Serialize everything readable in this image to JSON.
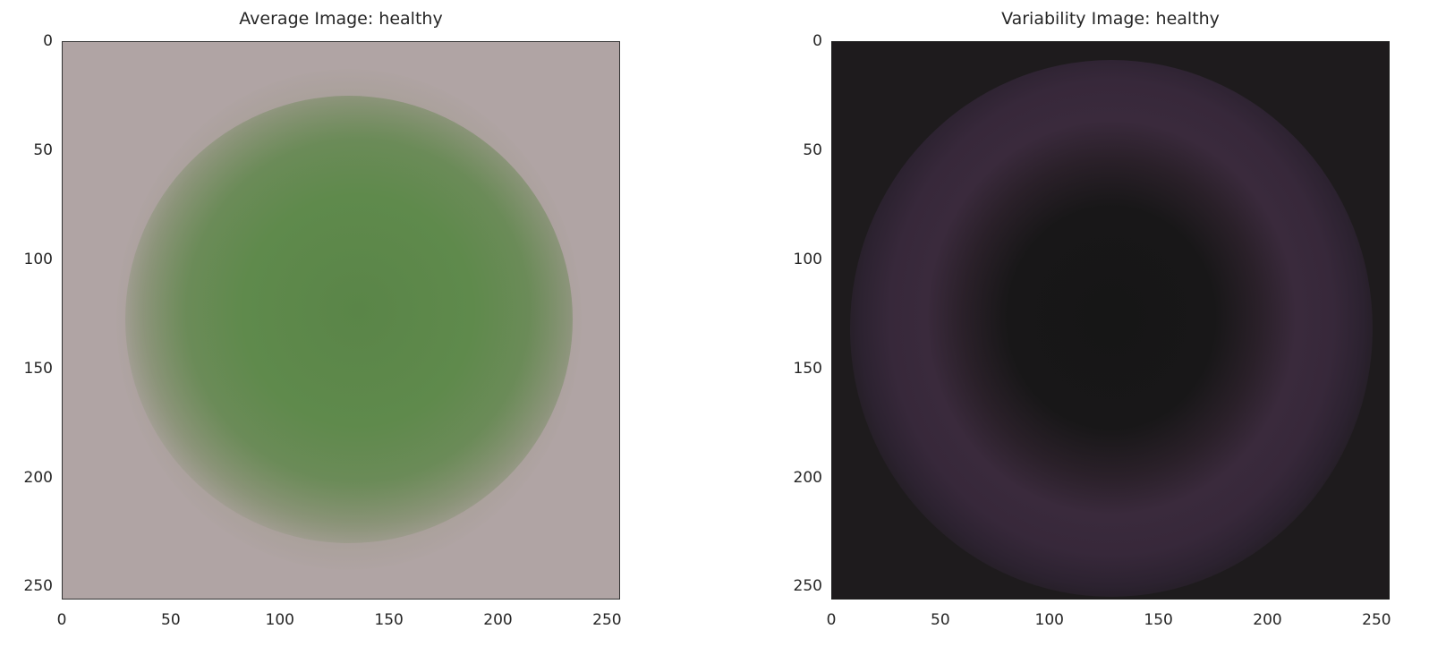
{
  "chart_data": [
    {
      "type": "heatmap",
      "title": "Average Image: healthy",
      "xlabel": "",
      "ylabel": "",
      "xlim": [
        0,
        256
      ],
      "ylim": [
        256,
        0
      ],
      "xticks": [
        0,
        50,
        100,
        150,
        200,
        250
      ],
      "yticks": [
        0,
        50,
        100,
        150,
        200,
        250
      ],
      "grid": false,
      "colors": {
        "background": "#b0a4a4",
        "center": "#5f8a4c"
      }
    },
    {
      "type": "heatmap",
      "title": "Variability Image: healthy",
      "xlabel": "",
      "ylabel": "",
      "xlim": [
        0,
        256
      ],
      "ylim": [
        256,
        0
      ],
      "xticks": [
        0,
        50,
        100,
        150,
        200,
        250
      ],
      "yticks": [
        0,
        50,
        100,
        150,
        200,
        250
      ],
      "grid": false,
      "colors": {
        "background": "#1e1b1d",
        "ring": "#3a2a3c",
        "center": "#161616"
      }
    }
  ]
}
